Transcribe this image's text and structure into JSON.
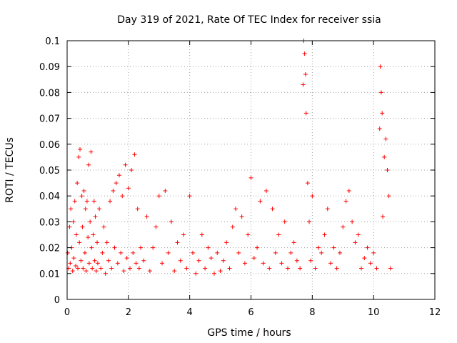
{
  "chart_data": {
    "type": "scatter",
    "title": "Day 319 of 2021, Rate Of TEC Index for receiver ssia",
    "xlabel": "GPS time / hours",
    "ylabel": "ROTI / TECUs",
    "xlim": [
      0,
      12
    ],
    "ylim": [
      0,
      0.1
    ],
    "xticks": [
      0,
      2,
      4,
      6,
      8,
      10,
      12
    ],
    "xtick_labels": [
      "0",
      "2",
      "4",
      "6",
      "8",
      "10",
      "12"
    ],
    "yticks": [
      0,
      0.01,
      0.02,
      0.03,
      0.04,
      0.05,
      0.06,
      0.07,
      0.08,
      0.09,
      0.1
    ],
    "ytick_labels": [
      "0",
      "0.01",
      "0.02",
      "0.03",
      "0.04",
      "0.05",
      "0.06",
      "0.07",
      "0.08",
      "0.09",
      "0.1"
    ],
    "grid": true,
    "marker": "+",
    "series": [
      {
        "name": "ROTI",
        "color": "#ff0000",
        "x": [
          0.02,
          0.05,
          0.08,
          0.1,
          0.12,
          0.15,
          0.18,
          0.2,
          0.22,
          0.25,
          0.28,
          0.3,
          0.33,
          0.35,
          0.38,
          0.4,
          0.42,
          0.45,
          0.48,
          0.5,
          0.52,
          0.55,
          0.58,
          0.6,
          0.62,
          0.65,
          0.68,
          0.7,
          0.72,
          0.75,
          0.78,
          0.8,
          0.82,
          0.85,
          0.88,
          0.9,
          0.92,
          0.95,
          0.98,
          1.0,
          1.05,
          1.1,
          1.15,
          1.2,
          1.25,
          1.3,
          1.35,
          1.4,
          1.45,
          1.5,
          1.55,
          1.6,
          1.65,
          1.7,
          1.75,
          1.8,
          1.85,
          1.9,
          1.95,
          2.0,
          2.05,
          2.1,
          2.15,
          2.2,
          2.25,
          2.3,
          2.35,
          2.4,
          2.5,
          2.6,
          2.7,
          2.8,
          2.9,
          3.0,
          3.1,
          3.2,
          3.3,
          3.4,
          3.5,
          3.6,
          3.7,
          3.8,
          3.9,
          4.0,
          4.1,
          4.2,
          4.3,
          4.4,
          4.5,
          4.6,
          4.7,
          4.8,
          4.9,
          5.0,
          5.1,
          5.2,
          5.3,
          5.4,
          5.5,
          5.6,
          5.7,
          5.8,
          5.9,
          6.0,
          6.1,
          6.2,
          6.3,
          6.4,
          6.5,
          6.6,
          6.7,
          6.8,
          6.9,
          7.0,
          7.1,
          7.2,
          7.3,
          7.4,
          7.5,
          7.6,
          7.7,
          7.72,
          7.75,
          7.78,
          7.8,
          7.85,
          7.9,
          7.95,
          8.0,
          8.1,
          8.2,
          8.3,
          8.4,
          8.5,
          8.6,
          8.7,
          8.8,
          8.9,
          9.0,
          9.1,
          9.2,
          9.3,
          9.4,
          9.5,
          9.6,
          9.7,
          9.8,
          9.9,
          10.0,
          10.1,
          10.2,
          10.22,
          10.25,
          10.28,
          10.3,
          10.35,
          10.4,
          10.45,
          10.5,
          10.55
        ],
        "y": [
          0.018,
          0.012,
          0.028,
          0.014,
          0.035,
          0.02,
          0.011,
          0.03,
          0.016,
          0.038,
          0.013,
          0.025,
          0.045,
          0.012,
          0.055,
          0.022,
          0.058,
          0.015,
          0.04,
          0.028,
          0.012,
          0.042,
          0.018,
          0.035,
          0.011,
          0.038,
          0.024,
          0.052,
          0.014,
          0.03,
          0.057,
          0.02,
          0.012,
          0.025,
          0.038,
          0.015,
          0.032,
          0.011,
          0.022,
          0.014,
          0.035,
          0.012,
          0.018,
          0.028,
          0.01,
          0.022,
          0.015,
          0.038,
          0.012,
          0.042,
          0.02,
          0.045,
          0.014,
          0.048,
          0.018,
          0.04,
          0.011,
          0.052,
          0.016,
          0.043,
          0.012,
          0.05,
          0.018,
          0.056,
          0.014,
          0.035,
          0.012,
          0.02,
          0.015,
          0.032,
          0.011,
          0.02,
          0.028,
          0.04,
          0.014,
          0.042,
          0.018,
          0.03,
          0.011,
          0.022,
          0.015,
          0.025,
          0.012,
          0.04,
          0.018,
          0.01,
          0.015,
          0.025,
          0.012,
          0.02,
          0.016,
          0.01,
          0.018,
          0.011,
          0.015,
          0.022,
          0.012,
          0.028,
          0.035,
          0.018,
          0.032,
          0.014,
          0.025,
          0.047,
          0.016,
          0.02,
          0.038,
          0.014,
          0.042,
          0.012,
          0.035,
          0.018,
          0.025,
          0.014,
          0.03,
          0.012,
          0.018,
          0.022,
          0.015,
          0.012,
          0.083,
          0.1,
          0.095,
          0.087,
          0.072,
          0.045,
          0.03,
          0.015,
          0.04,
          0.012,
          0.02,
          0.018,
          0.025,
          0.035,
          0.014,
          0.02,
          0.012,
          0.018,
          0.028,
          0.038,
          0.042,
          0.03,
          0.022,
          0.025,
          0.012,
          0.016,
          0.02,
          0.014,
          0.018,
          0.012,
          0.066,
          0.09,
          0.08,
          0.072,
          0.032,
          0.055,
          0.062,
          0.05,
          0.04,
          0.012
        ]
      }
    ]
  }
}
